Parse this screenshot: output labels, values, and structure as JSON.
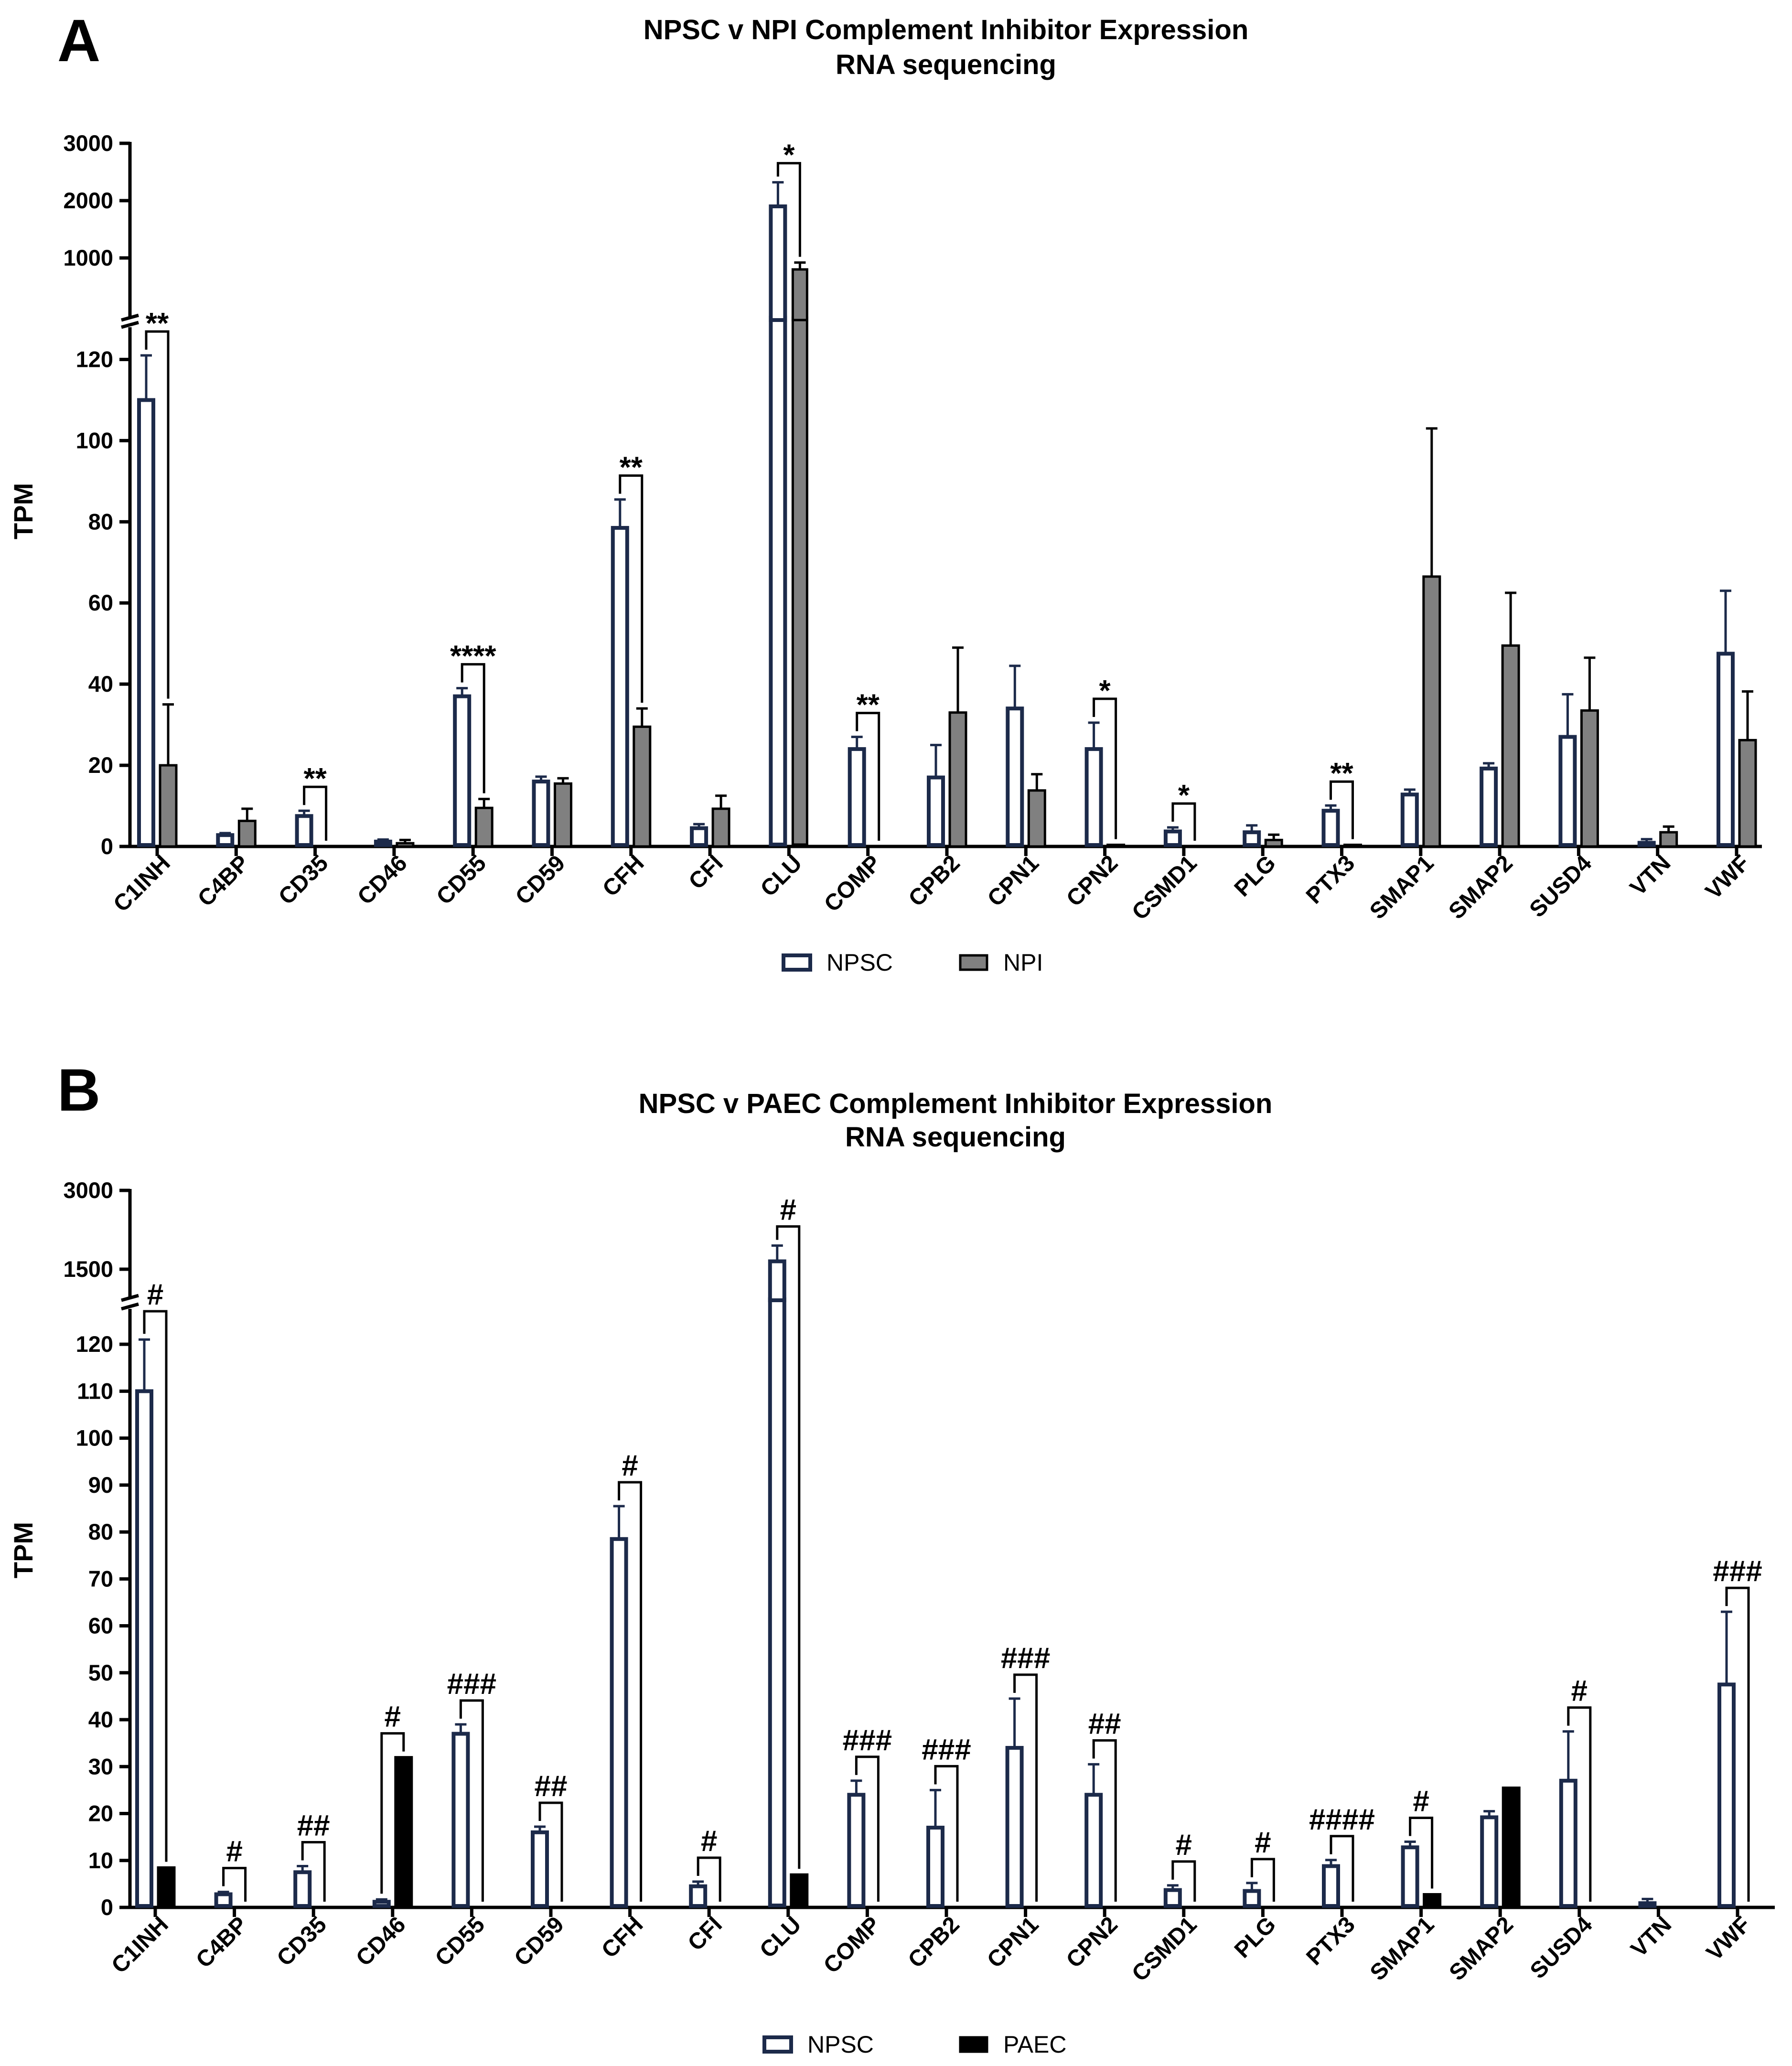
{
  "colors": {
    "npsc_edge": "#1c2a4a",
    "npi_fill": "#808080",
    "paec_fill": "#000000",
    "axis": "#000000"
  },
  "chart_data": [
    {
      "panel": "A",
      "type": "bar",
      "title": "NPSC v NPI Complement Inhibitor Expression",
      "subtitle": "RNA sequencing",
      "ylabel": "TPM",
      "xlabel": "",
      "categories": [
        "C1INH",
        "C4BP",
        "CD35",
        "CD46",
        "CD55",
        "CD59",
        "CFH",
        "CFI",
        "CLU",
        "COMP",
        "CPB2",
        "CPN1",
        "CPN2",
        "CSMD1",
        "PLG",
        "PTX3",
        "SMAP1",
        "SMAP2",
        "SUSD4",
        "VTN",
        "VWF"
      ],
      "axis_break": {
        "lower_ylim": [
          0,
          125
        ],
        "lower_ticks": [
          0,
          20,
          40,
          60,
          80,
          100,
          120
        ],
        "upper_ticks": [
          1000,
          2000,
          3000
        ],
        "upper_tick_labels": [
          "1000",
          "2000",
          "3000"
        ]
      },
      "series": [
        {
          "name": "NPSC",
          "style": "open",
          "values": [
            110,
            2.8,
            7.5,
            1.2,
            37,
            16,
            78.5,
            4.5,
            1900,
            24,
            17,
            34,
            24,
            3.7,
            3.5,
            8.8,
            12.8,
            19.2,
            27,
            0.9,
            47.5
          ],
          "errors": [
            11,
            0.5,
            1.3,
            0.5,
            2,
            1.2,
            7,
            1,
            420,
            3,
            8,
            10.5,
            6.5,
            1,
            1.7,
            1.3,
            1.2,
            1.3,
            10.5,
            0.9,
            15.5
          ]
        },
        {
          "name": "NPI",
          "style": "gray",
          "values": [
            20,
            6.3,
            0,
            0.8,
            9.5,
            15.5,
            29.5,
            9.3,
            800,
            0,
            33,
            13.8,
            0.4,
            0,
            1.6,
            0.4,
            66.5,
            49.5,
            33.5,
            3.5,
            26.2
          ],
          "errors": [
            15,
            3,
            0,
            0.8,
            2.2,
            1.3,
            4.5,
            3.2,
            120,
            0,
            16,
            4,
            0,
            0,
            1.3,
            0,
            36.5,
            13,
            13,
            1.4,
            12
          ]
        }
      ],
      "significance": [
        {
          "index": 0,
          "label": "**"
        },
        {
          "index": 2,
          "label": "**"
        },
        {
          "index": 4,
          "label": "****"
        },
        {
          "index": 6,
          "label": "**"
        },
        {
          "index": 8,
          "label": "*"
        },
        {
          "index": 9,
          "label": "**"
        },
        {
          "index": 12,
          "label": "*"
        },
        {
          "index": 13,
          "label": "*"
        },
        {
          "index": 15,
          "label": "**"
        }
      ],
      "legend": [
        "NPSC",
        "NPI"
      ]
    },
    {
      "panel": "B",
      "type": "bar",
      "title": "NPSC v PAEC Complement Inhibitor Expression",
      "subtitle": "RNA sequencing",
      "ylabel": "TPM",
      "xlabel": "",
      "categories": [
        "C1INH",
        "C4BP",
        "CD35",
        "CD46",
        "CD55",
        "CD59",
        "CFH",
        "CFI",
        "CLU",
        "COMP",
        "CPB2",
        "CPN1",
        "CPN2",
        "CSMD1",
        "PLG",
        "PTX3",
        "SMAP1",
        "SMAP2",
        "SUSD4",
        "VTN",
        "VWF"
      ],
      "axis_break": {
        "lower_ylim": [
          0,
          125
        ],
        "lower_ticks": [
          0,
          10,
          20,
          30,
          40,
          50,
          60,
          70,
          80,
          90,
          100,
          110,
          120
        ],
        "upper_ticks": [
          1500,
          3000
        ],
        "upper_tick_labels": [
          "1500",
          "3000"
        ]
      },
      "series": [
        {
          "name": "NPSC",
          "style": "open",
          "values": [
            110,
            2.8,
            7.5,
            1.2,
            37,
            16,
            78.5,
            4.5,
            1650,
            24,
            17,
            34,
            24,
            3.7,
            3.5,
            8.8,
            12.8,
            19.2,
            27,
            0.9,
            47.5
          ],
          "errors": [
            11,
            0.5,
            1.3,
            0.5,
            2,
            1.2,
            7,
            1,
            300,
            3,
            8,
            10.5,
            6.5,
            1,
            1.7,
            1.3,
            1.2,
            1.3,
            10.5,
            0.9,
            15.5
          ]
        },
        {
          "name": "PAEC",
          "style": "black",
          "values": [
            8.5,
            0,
            0,
            32,
            0,
            0,
            0,
            0,
            7,
            0,
            0,
            0,
            0,
            0,
            0,
            0,
            2.8,
            25.5,
            0,
            0,
            0
          ],
          "errors": [
            0,
            0,
            0,
            0,
            0,
            0,
            0,
            0,
            0,
            0,
            0,
            0,
            0,
            0,
            0,
            0,
            0,
            0,
            0,
            0,
            0
          ]
        }
      ],
      "significance": [
        {
          "index": 0,
          "label": "#"
        },
        {
          "index": 1,
          "label": "#"
        },
        {
          "index": 2,
          "label": "##"
        },
        {
          "index": 3,
          "label": "#"
        },
        {
          "index": 4,
          "label": "###"
        },
        {
          "index": 5,
          "label": "##"
        },
        {
          "index": 6,
          "label": "#"
        },
        {
          "index": 7,
          "label": "#"
        },
        {
          "index": 8,
          "label": "#"
        },
        {
          "index": 9,
          "label": "###"
        },
        {
          "index": 10,
          "label": "###"
        },
        {
          "index": 11,
          "label": "###"
        },
        {
          "index": 12,
          "label": "##"
        },
        {
          "index": 13,
          "label": "#"
        },
        {
          "index": 14,
          "label": "#"
        },
        {
          "index": 15,
          "label": "####"
        },
        {
          "index": 16,
          "label": "#"
        },
        {
          "index": 18,
          "label": "#"
        },
        {
          "index": 20,
          "label": "###"
        }
      ],
      "legend": [
        "NPSC",
        "PAEC"
      ]
    }
  ]
}
